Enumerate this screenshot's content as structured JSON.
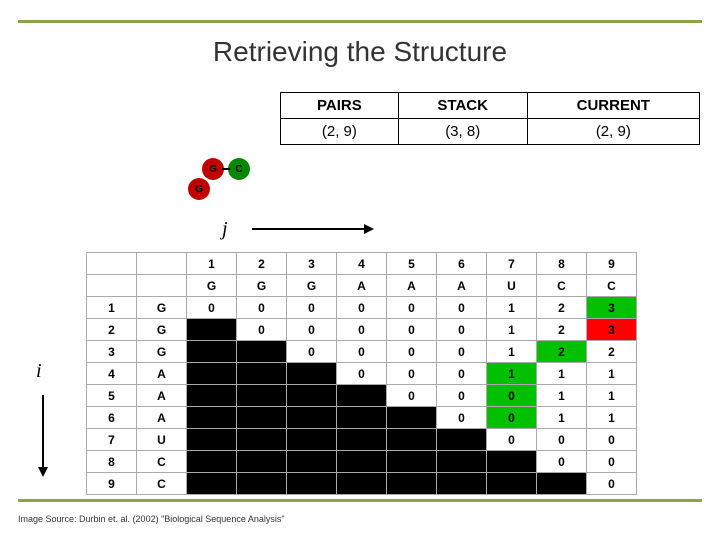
{
  "title": "Retrieving the Structure",
  "state": {
    "headers": [
      "PAIRS",
      "STACK",
      "CURRENT"
    ],
    "values": [
      "(2, 9)",
      "(3, 8)",
      "(2, 9)"
    ]
  },
  "circles": {
    "c1": "G",
    "c2": "C",
    "c3": "G"
  },
  "axis": {
    "j": "j",
    "i": "i"
  },
  "matrix": {
    "col_index": [
      "1",
      "2",
      "3",
      "4",
      "5",
      "6",
      "7",
      "8",
      "9"
    ],
    "col_nuc": [
      "G",
      "G",
      "G",
      "A",
      "A",
      "A",
      "U",
      "C",
      "C"
    ],
    "row_index": [
      "1",
      "2",
      "3",
      "4",
      "5",
      "6",
      "7",
      "8",
      "9"
    ],
    "row_nuc": [
      "G",
      "G",
      "G",
      "A",
      "A",
      "A",
      "U",
      "C",
      "C"
    ],
    "cells": [
      [
        {
          "v": "0",
          "c": ""
        },
        {
          "v": "0",
          "c": ""
        },
        {
          "v": "0",
          "c": ""
        },
        {
          "v": "0",
          "c": ""
        },
        {
          "v": "0",
          "c": ""
        },
        {
          "v": "0",
          "c": ""
        },
        {
          "v": "1",
          "c": ""
        },
        {
          "v": "2",
          "c": ""
        },
        {
          "v": "3",
          "c": "grn"
        }
      ],
      [
        {
          "v": "",
          "c": "blk"
        },
        {
          "v": "0",
          "c": ""
        },
        {
          "v": "0",
          "c": ""
        },
        {
          "v": "0",
          "c": ""
        },
        {
          "v": "0",
          "c": ""
        },
        {
          "v": "0",
          "c": ""
        },
        {
          "v": "1",
          "c": ""
        },
        {
          "v": "2",
          "c": ""
        },
        {
          "v": "3",
          "c": "red"
        }
      ],
      [
        {
          "v": "",
          "c": "blk"
        },
        {
          "v": "",
          "c": "blk"
        },
        {
          "v": "0",
          "c": ""
        },
        {
          "v": "0",
          "c": ""
        },
        {
          "v": "0",
          "c": ""
        },
        {
          "v": "0",
          "c": ""
        },
        {
          "v": "1",
          "c": ""
        },
        {
          "v": "2",
          "c": "grn"
        },
        {
          "v": "2",
          "c": ""
        }
      ],
      [
        {
          "v": "",
          "c": "blk"
        },
        {
          "v": "",
          "c": "blk"
        },
        {
          "v": "",
          "c": "blk"
        },
        {
          "v": "0",
          "c": ""
        },
        {
          "v": "0",
          "c": ""
        },
        {
          "v": "0",
          "c": ""
        },
        {
          "v": "1",
          "c": "grn"
        },
        {
          "v": "1",
          "c": ""
        },
        {
          "v": "1",
          "c": ""
        }
      ],
      [
        {
          "v": "",
          "c": "blk"
        },
        {
          "v": "",
          "c": "blk"
        },
        {
          "v": "",
          "c": "blk"
        },
        {
          "v": "",
          "c": "blk"
        },
        {
          "v": "0",
          "c": ""
        },
        {
          "v": "0",
          "c": ""
        },
        {
          "v": "0",
          "c": "grn"
        },
        {
          "v": "1",
          "c": ""
        },
        {
          "v": "1",
          "c": ""
        }
      ],
      [
        {
          "v": "",
          "c": "blk"
        },
        {
          "v": "",
          "c": "blk"
        },
        {
          "v": "",
          "c": "blk"
        },
        {
          "v": "",
          "c": "blk"
        },
        {
          "v": "",
          "c": "blk"
        },
        {
          "v": "0",
          "c": ""
        },
        {
          "v": "0",
          "c": "grn"
        },
        {
          "v": "1",
          "c": ""
        },
        {
          "v": "1",
          "c": ""
        }
      ],
      [
        {
          "v": "",
          "c": "blk"
        },
        {
          "v": "",
          "c": "blk"
        },
        {
          "v": "",
          "c": "blk"
        },
        {
          "v": "",
          "c": "blk"
        },
        {
          "v": "",
          "c": "blk"
        },
        {
          "v": "",
          "c": "blk"
        },
        {
          "v": "0",
          "c": ""
        },
        {
          "v": "0",
          "c": ""
        },
        {
          "v": "0",
          "c": ""
        }
      ],
      [
        {
          "v": "",
          "c": "blk"
        },
        {
          "v": "",
          "c": "blk"
        },
        {
          "v": "",
          "c": "blk"
        },
        {
          "v": "",
          "c": "blk"
        },
        {
          "v": "",
          "c": "blk"
        },
        {
          "v": "",
          "c": "blk"
        },
        {
          "v": "",
          "c": "blk"
        },
        {
          "v": "0",
          "c": ""
        },
        {
          "v": "0",
          "c": ""
        }
      ],
      [
        {
          "v": "",
          "c": "blk"
        },
        {
          "v": "",
          "c": "blk"
        },
        {
          "v": "",
          "c": "blk"
        },
        {
          "v": "",
          "c": "blk"
        },
        {
          "v": "",
          "c": "blk"
        },
        {
          "v": "",
          "c": "blk"
        },
        {
          "v": "",
          "c": "blk"
        },
        {
          "v": "",
          "c": "blk"
        },
        {
          "v": "0",
          "c": ""
        }
      ]
    ]
  },
  "source": "Image Source: Durbin et. al. (2002) \"Biological Sequence Analysis\"",
  "colors": {
    "rule": "#8aa548",
    "green_cell": "#00c000",
    "red_cell": "#ff0000",
    "black_cell": "#000000"
  }
}
